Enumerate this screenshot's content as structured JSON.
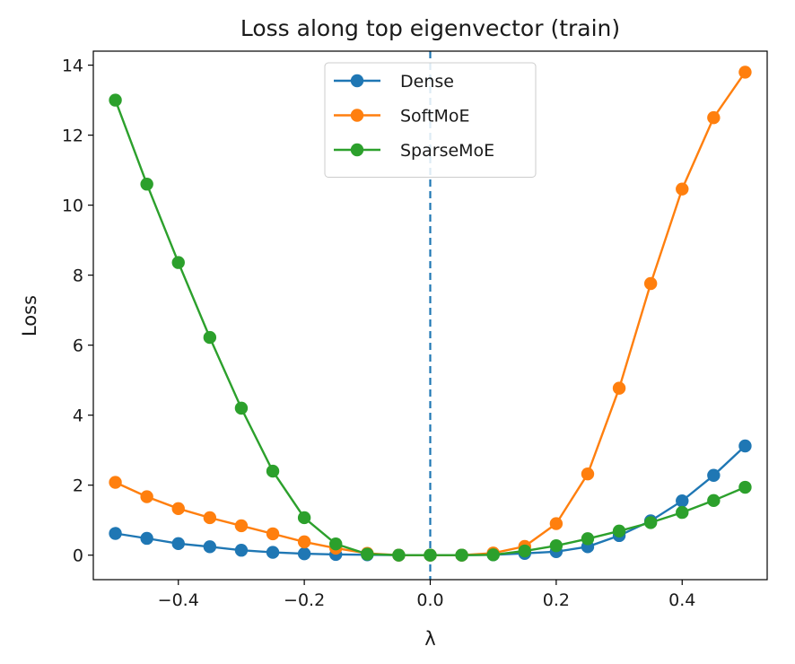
{
  "chart_data": {
    "type": "line",
    "title": "Loss along top eigenvector (train)",
    "xlabel": "λ",
    "ylabel": "Loss",
    "xlim": [
      -0.535,
      0.535
    ],
    "ylim": [
      -0.7,
      14.4
    ],
    "xticks": [
      -0.4,
      -0.2,
      0.0,
      0.2,
      0.4
    ],
    "xtick_labels": [
      "−0.4",
      "−0.2",
      "0.0",
      "0.2",
      "0.4"
    ],
    "yticks": [
      0,
      2,
      4,
      6,
      8,
      10,
      12,
      14
    ],
    "ytick_labels": [
      "0",
      "2",
      "4",
      "6",
      "8",
      "10",
      "12",
      "14"
    ],
    "grid": false,
    "legend_position": "top-center",
    "vline": {
      "x": 0.0,
      "style": "dashed",
      "color": "#1f77b4"
    },
    "x": [
      -0.5,
      -0.45,
      -0.4,
      -0.35,
      -0.3,
      -0.25,
      -0.2,
      -0.15,
      -0.1,
      -0.05,
      0.0,
      0.05,
      0.1,
      0.15,
      0.2,
      0.25,
      0.3,
      0.35,
      0.4,
      0.45,
      0.5
    ],
    "series": [
      {
        "name": "Dense",
        "color": "#1f77b4",
        "values": [
          0.62,
          0.48,
          0.33,
          0.24,
          0.14,
          0.08,
          0.04,
          0.02,
          0.01,
          0.0,
          0.0,
          0.0,
          0.01,
          0.05,
          0.1,
          0.24,
          0.56,
          0.98,
          1.55,
          2.28,
          3.12
        ]
      },
      {
        "name": "SoftMoE",
        "color": "#ff7f0e",
        "values": [
          2.08,
          1.67,
          1.33,
          1.07,
          0.84,
          0.61,
          0.38,
          0.2,
          0.05,
          0.0,
          0.0,
          0.0,
          0.06,
          0.25,
          0.9,
          2.32,
          4.77,
          7.76,
          10.46,
          12.5,
          13.8
        ]
      },
      {
        "name": "SparseMoE",
        "color": "#2ca02c",
        "values": [
          13.0,
          10.6,
          8.36,
          6.22,
          4.2,
          2.4,
          1.07,
          0.32,
          0.03,
          0.0,
          0.0,
          0.0,
          0.01,
          0.12,
          0.27,
          0.47,
          0.69,
          0.93,
          1.22,
          1.56,
          1.94
        ]
      }
    ]
  }
}
